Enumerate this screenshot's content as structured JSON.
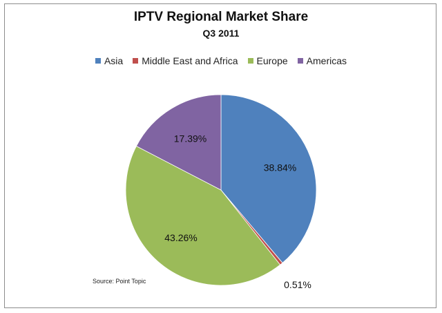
{
  "chart_data": {
    "type": "pie",
    "title": "IPTV Regional Market Share",
    "subtitle": "Q3 2011",
    "legend_position": "top",
    "slices": [
      {
        "label": "Asia",
        "value": 38.84,
        "display": "38.84%",
        "color": "#4f81bd"
      },
      {
        "label": "Middle East and Africa",
        "value": 0.51,
        "display": "0.51%",
        "color": "#c0504d"
      },
      {
        "label": "Europe",
        "value": 43.26,
        "display": "43.26%",
        "color": "#9bbb59"
      },
      {
        "label": "Americas",
        "value": 17.39,
        "display": "17.39%",
        "color": "#8064a2"
      }
    ],
    "source": "Source: Point Topic"
  }
}
